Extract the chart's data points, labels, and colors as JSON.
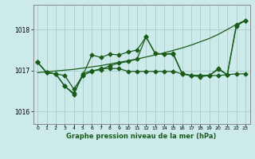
{
  "title": "Graphe pression niveau de la mer (hPa)",
  "background_color": "#cceaea",
  "grid_color": "#aacccc",
  "line_color": "#1a5c1a",
  "xlim": [
    -0.5,
    23.5
  ],
  "ylim": [
    1015.7,
    1018.6
  ],
  "yticks": [
    1016,
    1017,
    1018
  ],
  "xticks": [
    0,
    1,
    2,
    3,
    4,
    5,
    6,
    7,
    8,
    9,
    10,
    11,
    12,
    13,
    14,
    15,
    16,
    17,
    18,
    19,
    20,
    21,
    22,
    23
  ],
  "series_markers": [
    [
      1017.2,
      1016.95,
      1016.92,
      1016.88,
      1016.55,
      1016.88,
      1017.38,
      1017.32,
      1017.4,
      1017.38,
      1017.45,
      1017.5,
      1017.82,
      1017.42,
      1017.4,
      1017.42,
      1016.93,
      1016.88,
      1016.88,
      1016.88,
      1017.03,
      1016.9,
      1018.08,
      1018.22
    ],
    [
      1017.2,
      1016.95,
      1016.92,
      1016.62,
      1016.45,
      1016.88,
      1016.98,
      1017.05,
      1017.05,
      1017.05,
      1016.98,
      1016.98,
      1016.98,
      1016.98,
      1016.98,
      1016.98,
      1016.92,
      1016.88,
      1016.88,
      1016.88,
      1016.88,
      1016.9,
      1016.92,
      1016.92
    ],
    [
      1017.2,
      1016.95,
      1016.92,
      1016.62,
      1016.42,
      1016.92,
      1017.0,
      1017.02,
      1017.12,
      1017.18,
      1017.22,
      1017.28,
      1017.82,
      1017.42,
      1017.4,
      1017.4,
      1016.92,
      1016.88,
      1016.85,
      1016.88,
      1017.05,
      1016.9,
      1018.12,
      1018.22
    ]
  ],
  "series_line": [
    1016.95,
    1016.97,
    1016.99,
    1017.01,
    1017.03,
    1017.06,
    1017.09,
    1017.12,
    1017.16,
    1017.2,
    1017.24,
    1017.28,
    1017.33,
    1017.38,
    1017.43,
    1017.49,
    1017.55,
    1017.62,
    1017.7,
    1017.78,
    1017.88,
    1018.0,
    1018.12,
    1018.22
  ]
}
